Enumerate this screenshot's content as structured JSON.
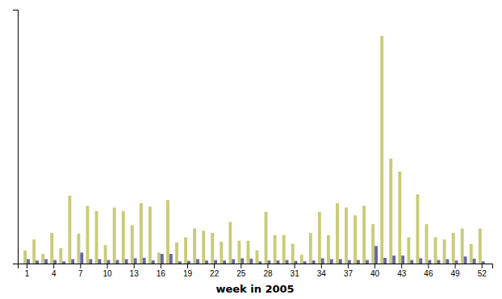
{
  "chart_data": {
    "type": "bar",
    "xlabel": "week in 2005",
    "x": [
      1,
      2,
      3,
      4,
      5,
      6,
      7,
      8,
      9,
      10,
      11,
      12,
      13,
      14,
      15,
      16,
      17,
      18,
      19,
      20,
      21,
      22,
      23,
      24,
      25,
      26,
      27,
      28,
      29,
      30,
      31,
      32,
      33,
      34,
      35,
      36,
      37,
      38,
      39,
      40,
      41,
      42,
      43,
      44,
      45,
      46,
      47,
      48,
      49,
      50,
      51,
      52
    ],
    "series": [
      {
        "color": "#c8cc78",
        "values": [
          0.3,
          0.55,
          0.22,
          0.7,
          0.35,
          1.55,
          0.68,
          1.32,
          1.2,
          0.42,
          1.28,
          1.2,
          0.88,
          1.38,
          1.3,
          0.25,
          1.45,
          0.48,
          0.6,
          0.8,
          0.75,
          0.7,
          0.5,
          0.95,
          0.52,
          0.52,
          0.3,
          1.18,
          0.65,
          0.65,
          0.45,
          0.2,
          0.7,
          1.18,
          0.65,
          1.38,
          1.28,
          1.1,
          1.32,
          0.9,
          5.2,
          2.4,
          2.1,
          0.6,
          1.58,
          0.9,
          0.6,
          0.55,
          0.7,
          0.8,
          0.45,
          0.8
        ]
      },
      {
        "color": "#6666aa",
        "values": [
          0.1,
          0.07,
          0.1,
          0.08,
          0.05,
          0.1,
          0.25,
          0.1,
          0.1,
          0.08,
          0.08,
          0.1,
          0.12,
          0.13,
          0.07,
          0.22,
          0.22,
          0.05,
          0.06,
          0.1,
          0.07,
          0.08,
          0.07,
          0.1,
          0.12,
          0.11,
          0.05,
          0.07,
          0.07,
          0.08,
          0.06,
          0.05,
          0.07,
          0.12,
          0.1,
          0.1,
          0.08,
          0.08,
          0.08,
          0.4,
          0.13,
          0.18,
          0.18,
          0.08,
          0.12,
          0.08,
          0.08,
          0.1,
          0.07,
          0.16,
          0.11,
          0.05
        ]
      }
    ],
    "xlim": [
      0,
      53.2
    ],
    "xticks": [
      1,
      4,
      7,
      10,
      13,
      16,
      19,
      22,
      25,
      28,
      31,
      34,
      37,
      40,
      43,
      46,
      49,
      52
    ],
    "ylim": [
      0,
      5.8
    ],
    "yticks": [],
    "tick_labels": "x",
    "grid": false
  }
}
